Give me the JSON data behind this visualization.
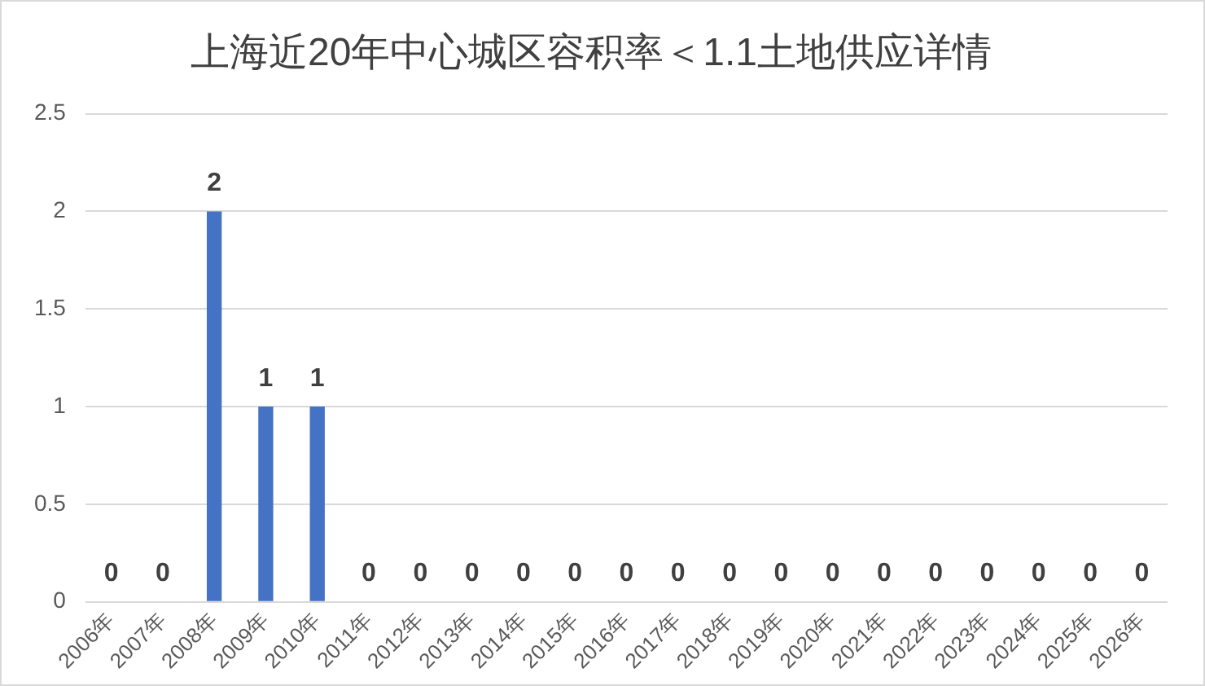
{
  "chart_data": {
    "type": "bar",
    "title": "上海近20年中心城区容积率＜1.1土地供应详情",
    "categories": [
      "2006年",
      "2007年",
      "2008年",
      "2009年",
      "2010年",
      "2011年",
      "2012年",
      "2013年",
      "2014年",
      "2015年",
      "2016年",
      "2017年",
      "2018年",
      "2019年",
      "2020年",
      "2021年",
      "2022年",
      "2023年",
      "2024年",
      "2025年",
      "2026年"
    ],
    "values": [
      0,
      0,
      2,
      1,
      1,
      0,
      0,
      0,
      0,
      0,
      0,
      0,
      0,
      0,
      0,
      0,
      0,
      0,
      0,
      0,
      0
    ],
    "color": "#4472c4",
    "ylim": [
      0,
      2.5
    ],
    "yticks": [
      0,
      0.5,
      1,
      1.5,
      2,
      2.5
    ],
    "grid": "y",
    "legend": false,
    "data_labels": true
  }
}
